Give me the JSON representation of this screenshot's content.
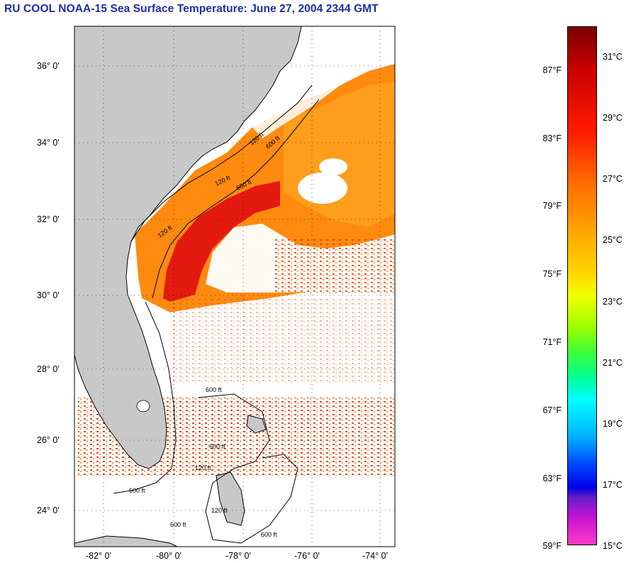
{
  "title": "RU COOL  NOAA-15  Sea Surface Temperature:  June 27, 2004 2344 GMT",
  "map": {
    "lat_labels": [
      "36° 0'",
      "34° 0'",
      "32° 0'",
      "30° 0'",
      "28° 0'",
      "26° 0'",
      "24° 0'"
    ],
    "lon_labels": [
      "-82° 0'",
      "-80° 0'",
      "-78° 0'",
      "-76° 0'",
      "-74° 0'"
    ],
    "contour_labels": [
      "120 ft",
      "600 ft",
      "120 ft",
      "600 ft",
      "120 ft",
      "600 ft",
      "120 ft",
      "600 ft",
      "600 ft",
      "120 ft",
      "600 ft",
      "600 ft"
    ]
  },
  "colorbar": {
    "fahrenheit": [
      "87°F",
      "83°F",
      "79°F",
      "75°F",
      "71°F",
      "67°F",
      "63°F",
      "59°F"
    ],
    "celsius": [
      "31°C",
      "29°C",
      "27°C",
      "25°C",
      "23°C",
      "21°C",
      "19°C",
      "17°C",
      "15°C"
    ]
  },
  "colors": {
    "title": "#1b2fa6",
    "land": "#c8c8c8",
    "water_warm": "#ff7a00",
    "gulf_stream": "#e01010"
  }
}
